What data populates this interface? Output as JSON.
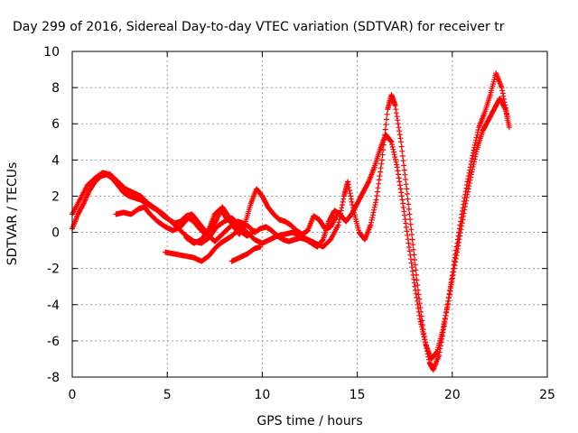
{
  "chart_data": {
    "type": "scatter",
    "title": "Day 299 of 2016, Sidereal Day-to-day VTEC variation (SDTVAR) for receiver tr",
    "xlabel": "GPS time / hours",
    "ylabel": "SDTVAR / TECUs",
    "xlim": [
      0,
      25
    ],
    "ylim": [
      -8,
      10
    ],
    "xticks": [
      0,
      5,
      10,
      15,
      20,
      25
    ],
    "yticks": [
      -8,
      -6,
      -4,
      -2,
      0,
      2,
      4,
      6,
      8,
      10
    ],
    "grid": true,
    "marker": "+",
    "series": [
      {
        "color": "#ff0000",
        "tracks": [
          [
            [
              0,
              0.2
            ],
            [
              0.3,
              1.0
            ],
            [
              0.6,
              1.6
            ],
            [
              0.9,
              2.3
            ],
            [
              1.2,
              2.8
            ],
            [
              1.5,
              3.1
            ],
            [
              1.8,
              3.2
            ],
            [
              2.1,
              3.0
            ],
            [
              2.4,
              2.6
            ],
            [
              2.7,
              2.2
            ],
            [
              3.0,
              2.0
            ],
            [
              3.3,
              1.9
            ],
            [
              3.6,
              1.8
            ],
            [
              3.9,
              1.6
            ],
            [
              4.2,
              1.4
            ],
            [
              4.5,
              1.2
            ],
            [
              4.8,
              0.9
            ],
            [
              5.1,
              0.7
            ],
            [
              5.4,
              0.5
            ],
            [
              5.7,
              0.6
            ],
            [
              6.0,
              0.9
            ],
            [
              6.3,
              1.0
            ],
            [
              6.6,
              0.6
            ],
            [
              6.9,
              0.2
            ],
            [
              7.2,
              -0.2
            ],
            [
              7.5,
              -0.5
            ],
            [
              7.8,
              -0.2
            ],
            [
              8.1,
              0.1
            ],
            [
              8.4,
              0.4
            ],
            [
              8.7,
              0.6
            ],
            [
              9.0,
              0.5
            ],
            [
              9.3,
              0.3
            ],
            [
              9.6,
              0.0
            ],
            [
              9.9,
              0.2
            ],
            [
              10.2,
              0.3
            ],
            [
              10.5,
              0.1
            ],
            [
              10.8,
              -0.2
            ],
            [
              11.1,
              -0.4
            ],
            [
              11.4,
              -0.5
            ],
            [
              11.7,
              -0.4
            ],
            [
              12.0,
              -0.3
            ],
            [
              12.3,
              -0.4
            ],
            [
              12.6,
              -0.6
            ],
            [
              12.9,
              -0.8
            ],
            [
              13.2,
              -0.4
            ],
            [
              13.5,
              0.6
            ],
            [
              13.8,
              1.2
            ],
            [
              14.1,
              1.0
            ],
            [
              14.4,
              0.6
            ],
            [
              14.7,
              1.0
            ],
            [
              15.0,
              1.6
            ],
            [
              15.3,
              2.2
            ],
            [
              15.6,
              2.8
            ],
            [
              15.9,
              3.6
            ],
            [
              16.2,
              4.6
            ],
            [
              16.5,
              5.4
            ],
            [
              16.8,
              5.0
            ],
            [
              17.1,
              3.6
            ],
            [
              17.4,
              1.6
            ],
            [
              17.7,
              -0.6
            ],
            [
              18.0,
              -2.8
            ],
            [
              18.3,
              -4.8
            ],
            [
              18.6,
              -6.2
            ],
            [
              18.9,
              -7.0
            ],
            [
              19.2,
              -6.6
            ],
            [
              19.5,
              -5.4
            ],
            [
              19.8,
              -3.8
            ],
            [
              20.1,
              -2.0
            ],
            [
              20.4,
              -0.2
            ],
            [
              20.7,
              1.6
            ],
            [
              21.0,
              3.2
            ],
            [
              21.3,
              4.6
            ],
            [
              21.6,
              5.6
            ],
            [
              21.9,
              6.2
            ],
            [
              22.2,
              6.8
            ],
            [
              22.5,
              7.4
            ],
            [
              22.8,
              6.8
            ],
            [
              23.0,
              5.8
            ]
          ],
          [
            [
              0,
              1.0
            ],
            [
              0.4,
              1.8
            ],
            [
              0.8,
              2.6
            ],
            [
              1.2,
              3.0
            ],
            [
              1.6,
              3.3
            ],
            [
              2.0,
              3.2
            ],
            [
              2.4,
              2.8
            ],
            [
              2.8,
              2.4
            ],
            [
              3.2,
              2.2
            ],
            [
              3.6,
              2.0
            ],
            [
              4.0,
              1.6
            ],
            [
              4.4,
              1.3
            ],
            [
              4.8,
              1.0
            ],
            [
              5.2,
              0.6
            ],
            [
              5.6,
              0.2
            ],
            [
              6.0,
              -0.2
            ],
            [
              6.4,
              -0.5
            ],
            [
              6.8,
              -0.6
            ],
            [
              7.2,
              -0.3
            ],
            [
              7.6,
              0.3
            ],
            [
              8.0,
              0.6
            ],
            [
              8.4,
              0.8
            ],
            [
              8.8,
              0.4
            ],
            [
              9.2,
              0.0
            ],
            [
              9.6,
              -0.4
            ],
            [
              10.0,
              -0.6
            ],
            [
              10.4,
              -0.4
            ],
            [
              10.8,
              -0.2
            ],
            [
              11.2,
              -0.1
            ],
            [
              11.6,
              0.0
            ],
            [
              12.0,
              -0.2
            ],
            [
              12.4,
              -0.4
            ],
            [
              12.8,
              -0.6
            ],
            [
              13.2,
              -0.8
            ],
            [
              13.6,
              -0.4
            ],
            [
              14.0,
              0.4
            ],
            [
              14.3,
              2.0
            ],
            [
              14.5,
              2.8
            ],
            [
              14.8,
              1.2
            ],
            [
              15.1,
              0.0
            ],
            [
              15.4,
              -0.4
            ],
            [
              15.7,
              0.4
            ],
            [
              16.0,
              1.8
            ],
            [
              16.3,
              4.0
            ],
            [
              16.6,
              6.8
            ],
            [
              16.8,
              7.6
            ],
            [
              17.0,
              7.0
            ],
            [
              17.3,
              5.0
            ],
            [
              17.6,
              2.4
            ],
            [
              17.9,
              -0.4
            ],
            [
              18.2,
              -3.2
            ],
            [
              18.5,
              -5.6
            ],
            [
              18.8,
              -7.2
            ],
            [
              19.0,
              -7.6
            ],
            [
              19.3,
              -6.8
            ],
            [
              19.6,
              -5.0
            ],
            [
              19.9,
              -3.0
            ],
            [
              20.2,
              -1.0
            ],
            [
              20.5,
              1.0
            ],
            [
              20.8,
              2.8
            ],
            [
              21.1,
              4.4
            ],
            [
              21.4,
              5.8
            ],
            [
              21.7,
              6.6
            ],
            [
              22.0,
              7.6
            ],
            [
              22.3,
              8.8
            ],
            [
              22.6,
              8.0
            ],
            [
              22.9,
              6.4
            ]
          ],
          [
            [
              2.3,
              1.0
            ],
            [
              2.7,
              1.1
            ],
            [
              3.1,
              1.0
            ],
            [
              3.5,
              1.3
            ],
            [
              3.8,
              1.4
            ],
            [
              4.1,
              1.0
            ],
            [
              4.5,
              0.6
            ],
            [
              4.9,
              0.3
            ],
            [
              5.3,
              0.1
            ],
            [
              5.7,
              0.3
            ],
            [
              6.1,
              0.8
            ],
            [
              6.4,
              0.6
            ],
            [
              6.7,
              0.2
            ],
            [
              7.0,
              -0.1
            ],
            [
              7.3,
              0.2
            ],
            [
              7.6,
              0.7
            ],
            [
              7.9,
              1.4
            ],
            [
              8.2,
              0.9
            ],
            [
              8.5,
              0.3
            ],
            [
              8.8,
              -0.1
            ],
            [
              9.1,
              0.5
            ],
            [
              9.4,
              1.6
            ],
            [
              9.7,
              2.4
            ],
            [
              10.0,
              2.0
            ],
            [
              10.3,
              1.4
            ],
            [
              10.6,
              1.0
            ],
            [
              10.9,
              0.7
            ],
            [
              11.2,
              0.6
            ],
            [
              11.5,
              0.4
            ],
            [
              11.8,
              0.1
            ],
            [
              12.1,
              -0.1
            ],
            [
              12.4,
              0.1
            ],
            [
              12.7,
              0.9
            ],
            [
              13.0,
              0.7
            ],
            [
              13.3,
              0.2
            ],
            [
              13.6,
              0.3
            ],
            [
              13.9,
              0.9
            ]
          ],
          [
            [
              4.9,
              -1.1
            ],
            [
              5.4,
              -1.2
            ],
            [
              5.9,
              -1.3
            ],
            [
              6.4,
              -1.4
            ],
            [
              6.8,
              -1.6
            ],
            [
              7.2,
              -1.3
            ],
            [
              7.5,
              -0.9
            ],
            [
              7.8,
              -0.6
            ],
            [
              8.1,
              -0.4
            ],
            [
              8.4,
              -0.2
            ],
            [
              8.7,
              0.1
            ],
            [
              9.0,
              0.5
            ]
          ],
          [
            [
              8.4,
              -1.6
            ],
            [
              8.8,
              -1.4
            ],
            [
              9.2,
              -1.2
            ],
            [
              9.6,
              -0.9
            ],
            [
              9.9,
              -0.8
            ]
          ],
          [
            [
              6.0,
              -0.3
            ],
            [
              6.4,
              -0.6
            ],
            [
              6.8,
              -0.4
            ],
            [
              7.2,
              0.2
            ],
            [
              7.5,
              1.0
            ],
            [
              7.8,
              1.3
            ],
            [
              8.1,
              0.8
            ],
            [
              8.4,
              0.5
            ],
            [
              8.8,
              0.1
            ],
            [
              9.2,
              -0.2
            ],
            [
              9.6,
              0.1
            ]
          ]
        ]
      }
    ]
  }
}
